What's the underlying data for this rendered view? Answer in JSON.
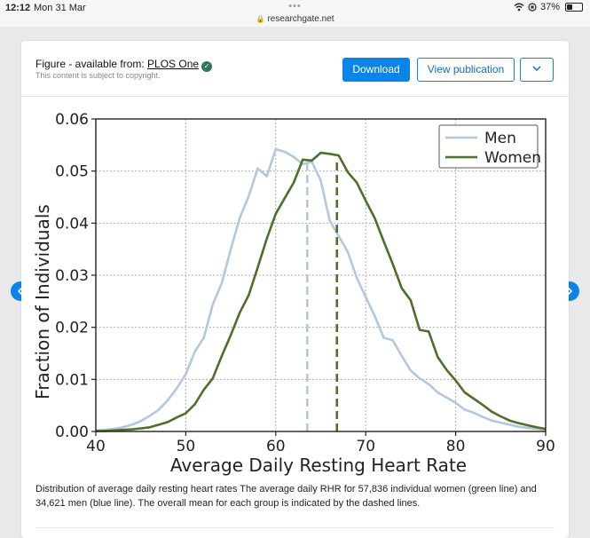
{
  "status_bar": {
    "time": "12:12",
    "date": "Mon 31 Mar",
    "dots": "•••",
    "url": "researchgate.net",
    "battery": "37%",
    "battery_level": 0.37
  },
  "header": {
    "figure_prefix": "Figure - available from: ",
    "journal": "PLOS One",
    "copyright": "This content is subject to copyright.",
    "download_label": "Download",
    "view_label": "View publication"
  },
  "colors": {
    "accent": "#0a84e6",
    "men": "#b3c7e0",
    "women": "#4e6e2e"
  },
  "chart_data": {
    "type": "line",
    "xlabel": "Average Daily Resting Heart Rate",
    "ylabel": "Fraction of Individuals",
    "xlim": [
      40,
      90
    ],
    "ylim": [
      0,
      0.06
    ],
    "x_ticks": [
      "40",
      "50",
      "60",
      "70",
      "80",
      "90"
    ],
    "y_ticks": [
      "0.00",
      "0.01",
      "0.02",
      "0.03",
      "0.04",
      "0.05",
      "0.06"
    ],
    "x_tick_values": [
      40,
      50,
      60,
      70,
      80,
      90
    ],
    "y_tick_values": [
      0,
      0.01,
      0.02,
      0.03,
      0.04,
      0.05,
      0.06
    ],
    "grid": true,
    "legend_position": "top-right",
    "series": [
      {
        "name": "Men",
        "color": "#b3c7e0",
        "x": [
          40,
          41,
          42,
          43,
          44,
          45,
          46,
          47,
          48,
          49,
          50,
          51,
          52,
          53,
          54,
          55,
          56,
          57,
          58,
          59,
          60,
          61,
          62,
          63,
          64,
          65,
          66,
          67,
          68,
          69,
          70,
          71,
          72,
          73,
          74,
          75,
          76,
          77,
          78,
          79,
          80,
          81,
          82,
          83,
          84,
          85,
          86,
          87,
          88,
          89,
          90
        ],
        "y": [
          0.0002,
          0.0003,
          0.0005,
          0.0008,
          0.0013,
          0.002,
          0.003,
          0.0042,
          0.006,
          0.0083,
          0.011,
          0.0153,
          0.018,
          0.0244,
          0.0285,
          0.035,
          0.041,
          0.0452,
          0.0505,
          0.049,
          0.0542,
          0.0537,
          0.0527,
          0.0513,
          0.0518,
          0.0482,
          0.0405,
          0.0375,
          0.0345,
          0.0295,
          0.0258,
          0.0222,
          0.018,
          0.0175,
          0.0145,
          0.0117,
          0.0102,
          0.0091,
          0.0075,
          0.0065,
          0.0055,
          0.0042,
          0.0036,
          0.0028,
          0.0021,
          0.0017,
          0.0013,
          0.0009,
          0.0007,
          0.0005,
          0.0003
        ]
      },
      {
        "name": "Women",
        "color": "#4e6e2e",
        "x": [
          40,
          41,
          42,
          43,
          44,
          45,
          46,
          47,
          48,
          49,
          50,
          51,
          52,
          53,
          54,
          55,
          56,
          57,
          58,
          59,
          60,
          61,
          62,
          63,
          64,
          65,
          66,
          67,
          68,
          69,
          70,
          71,
          72,
          73,
          74,
          75,
          76,
          77,
          78,
          79,
          80,
          81,
          82,
          83,
          84,
          85,
          86,
          87,
          88,
          89,
          90
        ],
        "y": [
          0.0001,
          0.0001,
          0.0002,
          0.0003,
          0.0004,
          0.0006,
          0.0008,
          0.0013,
          0.0018,
          0.0027,
          0.0035,
          0.0052,
          0.008,
          0.0102,
          0.0145,
          0.0185,
          0.0228,
          0.0262,
          0.0315,
          0.037,
          0.0418,
          0.0448,
          0.0478,
          0.0522,
          0.052,
          0.0535,
          0.0533,
          0.053,
          0.0498,
          0.0478,
          0.0443,
          0.041,
          0.0365,
          0.0322,
          0.0275,
          0.0252,
          0.0195,
          0.0192,
          0.0143,
          0.0118,
          0.0098,
          0.0075,
          0.0063,
          0.0051,
          0.0038,
          0.0029,
          0.0021,
          0.0016,
          0.0012,
          0.0008,
          0.0005
        ]
      }
    ],
    "mean_lines": [
      {
        "series": "Men",
        "x": 63.5,
        "color": "#b3c7e0"
      },
      {
        "series": "Women",
        "x": 66.8,
        "color": "#4e6e2e"
      }
    ]
  },
  "caption": "Distribution of average daily resting heart rates The average daily RHR for 57,836 individual women (green line) and 34,621 men (blue line). The overall mean for each group is indicated by the dashed lines."
}
